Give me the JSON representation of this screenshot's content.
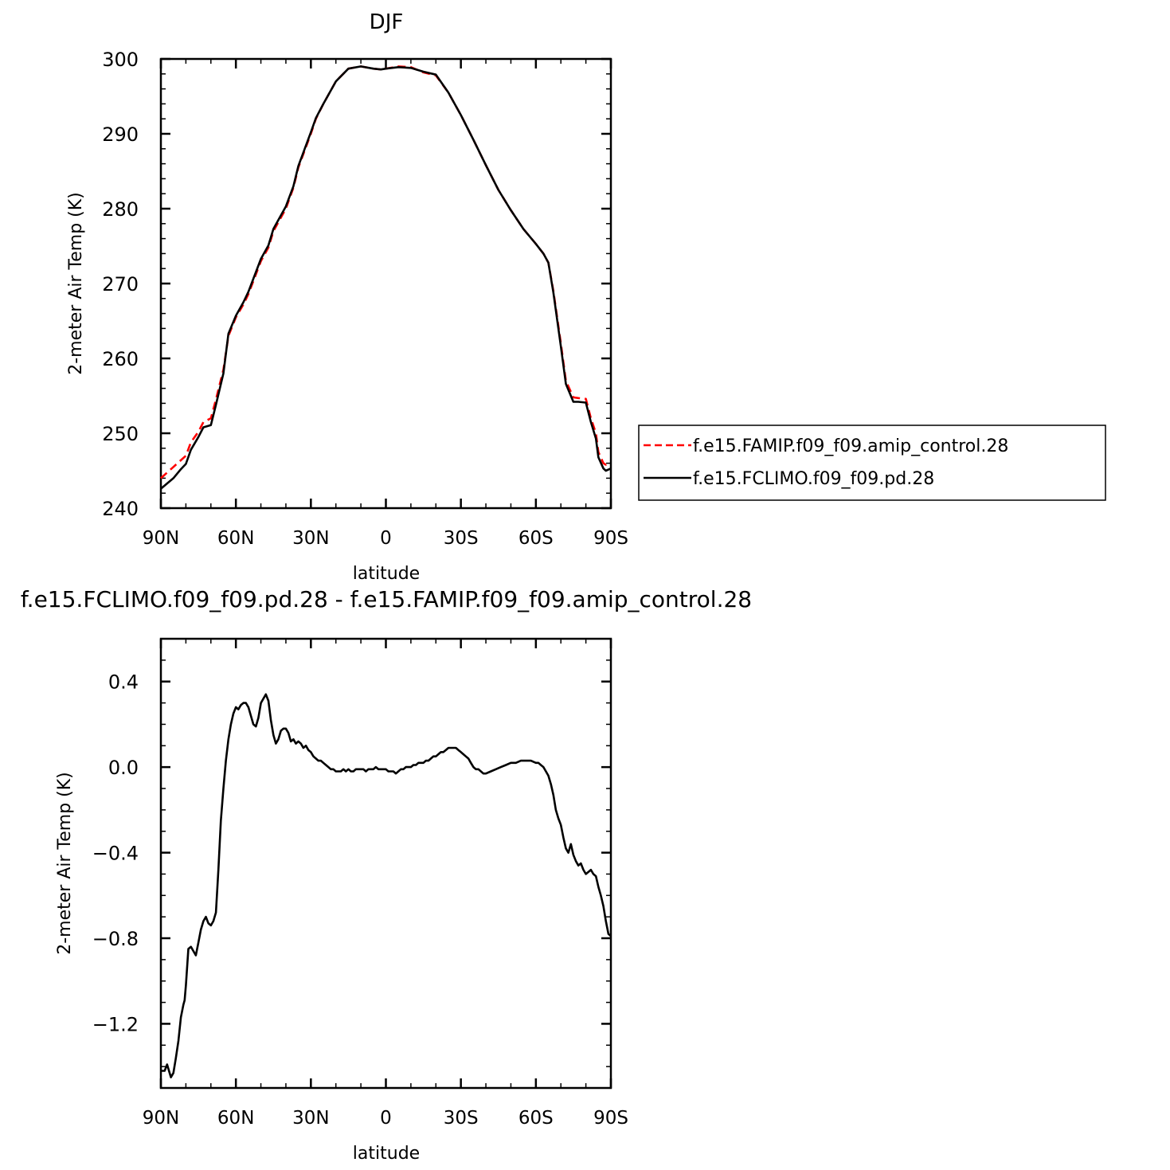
{
  "colors": {
    "amip": "#ff0000",
    "fclimo": "#000000",
    "axis": "#000000"
  },
  "legend": {
    "amip_label": "f.e15.FAMIP.f09_f09.amip_control.28",
    "fclimo_label": "f.e15.FCLIMO.f09_f09.pd.28"
  },
  "chart_data": [
    {
      "type": "line",
      "title": "DJF",
      "xlabel": "latitude",
      "ylabel": "2-meter Air Temp (K)",
      "xlim": [
        90,
        -90
      ],
      "ylim": [
        240,
        300
      ],
      "grid": false,
      "legend_position": "right",
      "x_tick_values": [
        90,
        60,
        30,
        0,
        -30,
        -60,
        -90
      ],
      "x_tick_labels": [
        "90N",
        "60N",
        "30N",
        "0",
        "30S",
        "60S",
        "90S"
      ],
      "y_tick_values": [
        240,
        250,
        260,
        270,
        280,
        290,
        300
      ],
      "y_tick_labels": [
        "240",
        "250",
        "260",
        "270",
        "280",
        "290",
        "300"
      ],
      "series": [
        {
          "name": "f.e15.FAMIP.f09_f09.amip_control.28",
          "style": "dashed",
          "x": [
            90,
            85,
            80,
            78,
            75,
            73,
            70,
            68,
            65,
            63,
            60,
            57,
            55,
            50,
            47,
            45,
            40,
            37,
            35,
            30,
            28,
            25,
            20,
            15,
            10,
            5,
            2,
            0,
            -5,
            -10,
            -15,
            -20,
            -25,
            -30,
            -35,
            -40,
            -45,
            -50,
            -55,
            -60,
            -63,
            -65,
            -67,
            -70,
            -72,
            -75,
            -77,
            -80,
            -82,
            -84,
            -85,
            -87,
            -88,
            -90
          ],
          "y": [
            244.0,
            245.5,
            247.0,
            248.8,
            250.2,
            251.5,
            252.0,
            254.5,
            258.5,
            263.0,
            265.5,
            267.2,
            268.6,
            273.0,
            274.8,
            277.0,
            280.0,
            282.8,
            285.5,
            290.0,
            292.0,
            294.0,
            297.0,
            298.7,
            299.0,
            298.7,
            298.6,
            298.7,
            299.0,
            298.9,
            298.2,
            297.8,
            295.5,
            292.5,
            289.2,
            285.8,
            282.5,
            279.8,
            277.3,
            275.3,
            274.0,
            272.8,
            269.0,
            262.0,
            257.0,
            254.8,
            254.7,
            254.6,
            252.0,
            250.0,
            247.5,
            246.0,
            245.8,
            246.0
          ]
        },
        {
          "name": "f.e15.FCLIMO.f09_f09.pd.28",
          "style": "solid",
          "x": [
            90,
            85,
            82,
            80,
            78,
            75,
            73,
            70,
            68,
            65,
            63,
            60,
            57,
            55,
            50,
            47,
            45,
            40,
            37,
            35,
            30,
            28,
            25,
            20,
            15,
            10,
            5,
            2,
            0,
            -5,
            -10,
            -15,
            -20,
            -25,
            -30,
            -35,
            -40,
            -45,
            -50,
            -55,
            -60,
            -63,
            -65,
            -67,
            -70,
            -72,
            -75,
            -77,
            -80,
            -82,
            -84,
            -85,
            -87,
            -88,
            -90
          ],
          "y": [
            242.6,
            244.0,
            245.2,
            245.9,
            247.8,
            249.5,
            250.8,
            251.1,
            253.8,
            258.0,
            263.3,
            265.7,
            267.5,
            268.9,
            273.3,
            275.1,
            277.3,
            280.3,
            283.0,
            285.7,
            290.2,
            292.1,
            294.0,
            297.0,
            298.7,
            299.0,
            298.7,
            298.6,
            298.7,
            298.9,
            298.8,
            298.3,
            297.9,
            295.5,
            292.5,
            289.2,
            285.8,
            282.5,
            279.8,
            277.3,
            275.3,
            274.0,
            272.8,
            268.8,
            261.6,
            256.6,
            254.2,
            254.2,
            254.1,
            251.5,
            249.3,
            246.8,
            245.3,
            245.0,
            245.3
          ]
        }
      ]
    },
    {
      "type": "line",
      "title": "f.e15.FCLIMO.f09_f09.pd.28 - f.e15.FAMIP.f09_f09.amip_control.28",
      "xlabel": "latitude",
      "ylabel": "2-meter Air Temp (K)",
      "xlim": [
        90,
        -90
      ],
      "ylim": [
        -1.5,
        0.6
      ],
      "grid": false,
      "x_tick_values": [
        90,
        60,
        30,
        0,
        -30,
        -60,
        -90
      ],
      "x_tick_labels": [
        "90N",
        "60N",
        "30N",
        "0",
        "30S",
        "60S",
        "90S"
      ],
      "y_tick_values": [
        0.4,
        0.0,
        -0.4,
        -0.8,
        -1.2
      ],
      "y_tick_labels": [
        "0.4",
        "0.0",
        "−0.4",
        "−0.8",
        "−1.2"
      ],
      "series": [
        {
          "name": "",
          "style": "solid",
          "x": [
            90,
            88.5,
            87.5,
            86,
            85,
            84,
            83,
            82,
            81,
            80.5,
            80,
            79,
            78,
            77,
            76,
            75,
            74,
            73,
            72,
            71,
            70,
            69,
            68,
            67,
            66,
            65,
            64,
            63,
            62,
            61,
            60,
            59,
            58,
            57,
            56,
            55,
            54,
            53,
            52,
            51,
            50,
            49,
            48,
            47,
            46,
            45,
            44,
            43,
            42,
            41,
            40,
            39,
            38,
            37,
            36,
            35,
            34,
            33,
            32,
            31,
            30,
            29,
            28,
            27,
            26,
            25,
            24,
            23,
            22,
            21,
            20,
            19,
            18,
            17,
            16,
            15,
            14,
            13,
            12,
            11,
            10,
            9,
            8,
            7,
            6,
            5,
            4,
            3,
            2,
            1,
            0,
            -1,
            -2,
            -3,
            -4,
            -5,
            -6,
            -7,
            -8,
            -9,
            -10,
            -11,
            -12,
            -13,
            -14,
            -15,
            -16,
            -17,
            -18,
            -19,
            -20,
            -21,
            -22,
            -23,
            -24,
            -25,
            -26,
            -27,
            -28,
            -29,
            -30,
            -31,
            -32,
            -33,
            -34,
            -35,
            -36,
            -37,
            -38,
            -39,
            -40,
            -42,
            -44,
            -46,
            -48,
            -50,
            -52,
            -54,
            -56,
            -58,
            -60,
            -61,
            -62,
            -63,
            -64,
            -65,
            -66,
            -67,
            -68,
            -69,
            -70,
            -71,
            -72,
            -73,
            -74,
            -75,
            -76,
            -77,
            -78,
            -79,
            -80,
            -81,
            -82,
            -83,
            -84,
            -85,
            -86,
            -87,
            -88,
            -89,
            -90
          ],
          "y": [
            -1.42,
            -1.42,
            -1.39,
            -1.45,
            -1.43,
            -1.36,
            -1.28,
            -1.17,
            -1.11,
            -1.09,
            -1.02,
            -0.85,
            -0.84,
            -0.86,
            -0.88,
            -0.82,
            -0.76,
            -0.72,
            -0.7,
            -0.73,
            -0.74,
            -0.72,
            -0.68,
            -0.48,
            -0.25,
            -0.1,
            0.03,
            0.13,
            0.2,
            0.25,
            0.28,
            0.27,
            0.29,
            0.3,
            0.3,
            0.28,
            0.24,
            0.2,
            0.19,
            0.23,
            0.3,
            0.32,
            0.34,
            0.31,
            0.22,
            0.15,
            0.11,
            0.13,
            0.17,
            0.18,
            0.18,
            0.16,
            0.12,
            0.13,
            0.11,
            0.12,
            0.11,
            0.09,
            0.1,
            0.08,
            0.07,
            0.05,
            0.04,
            0.03,
            0.03,
            0.02,
            0.01,
            0.0,
            -0.01,
            -0.01,
            -0.02,
            -0.02,
            -0.02,
            -0.01,
            -0.02,
            -0.01,
            -0.02,
            -0.02,
            -0.01,
            -0.01,
            -0.01,
            -0.01,
            -0.02,
            -0.01,
            -0.01,
            -0.01,
            0.0,
            -0.01,
            -0.01,
            -0.01,
            -0.01,
            -0.02,
            -0.02,
            -0.02,
            -0.03,
            -0.02,
            -0.01,
            -0.01,
            0.0,
            0.0,
            0.0,
            0.01,
            0.01,
            0.02,
            0.02,
            0.02,
            0.03,
            0.03,
            0.04,
            0.05,
            0.05,
            0.06,
            0.07,
            0.07,
            0.08,
            0.09,
            0.09,
            0.09,
            0.09,
            0.08,
            0.07,
            0.06,
            0.05,
            0.04,
            0.02,
            0.0,
            -0.01,
            -0.01,
            -0.02,
            -0.03,
            -0.03,
            -0.02,
            -0.01,
            0.0,
            0.01,
            0.02,
            0.02,
            0.03,
            0.03,
            0.03,
            0.02,
            0.02,
            0.01,
            0.0,
            -0.02,
            -0.04,
            -0.08,
            -0.13,
            -0.2,
            -0.24,
            -0.27,
            -0.33,
            -0.38,
            -0.4,
            -0.36,
            -0.41,
            -0.44,
            -0.46,
            -0.45,
            -0.48,
            -0.5,
            -0.49,
            -0.48,
            -0.5,
            -0.51,
            -0.56,
            -0.6,
            -0.65,
            -0.72,
            -0.78,
            -0.79
          ]
        }
      ]
    }
  ]
}
